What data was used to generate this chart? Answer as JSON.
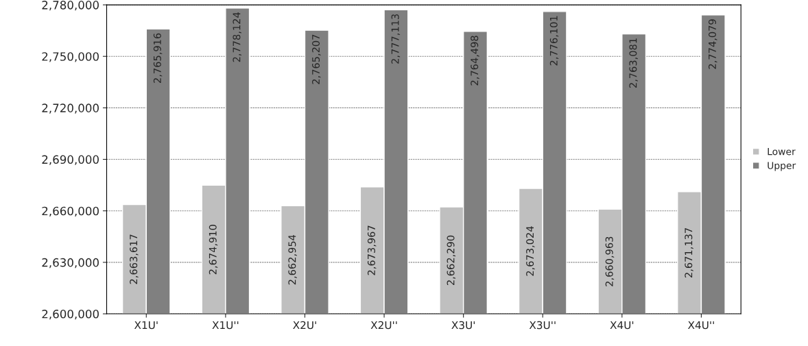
{
  "chart_data": {
    "type": "bar",
    "categories": [
      "X1U'",
      "X1U''",
      "X2U'",
      "X2U''",
      "X3U'",
      "X3U''",
      "X4U'",
      "X4U''"
    ],
    "series": [
      {
        "name": "Lower",
        "color": "#bfbfbf",
        "values": [
          2663617,
          2674910,
          2662954,
          2673967,
          2662290,
          2673024,
          2660963,
          2671137
        ],
        "value_labels": [
          "2,663,617",
          "2,674,910",
          "2,662,954",
          "2,673,967",
          "2,662,290",
          "2,673,024",
          "2,660,963",
          "2,671,137"
        ]
      },
      {
        "name": "Upper",
        "color": "#808080",
        "values": [
          2765916,
          2778124,
          2765207,
          2777113,
          2764498,
          2776101,
          2763081,
          2774079
        ],
        "value_labels": [
          "2,765,916",
          "2,778,124",
          "2,765,207",
          "2,777,113",
          "2,764,498",
          "2,776,101",
          "2,763,081",
          "2,774,079"
        ]
      }
    ],
    "ylim": [
      2600000,
      2780000
    ],
    "yticks": [
      {
        "value": 2600000,
        "label": "2,600,000"
      },
      {
        "value": 2630000,
        "label": "2,630,000"
      },
      {
        "value": 2660000,
        "label": "2,660,000"
      },
      {
        "value": 2690000,
        "label": "2,690,000"
      },
      {
        "value": 2720000,
        "label": "2,720,000"
      },
      {
        "value": 2750000,
        "label": "2,750,000"
      },
      {
        "value": 2780000,
        "label": "2,780,000"
      }
    ],
    "grid": "y",
    "legend": "right"
  }
}
